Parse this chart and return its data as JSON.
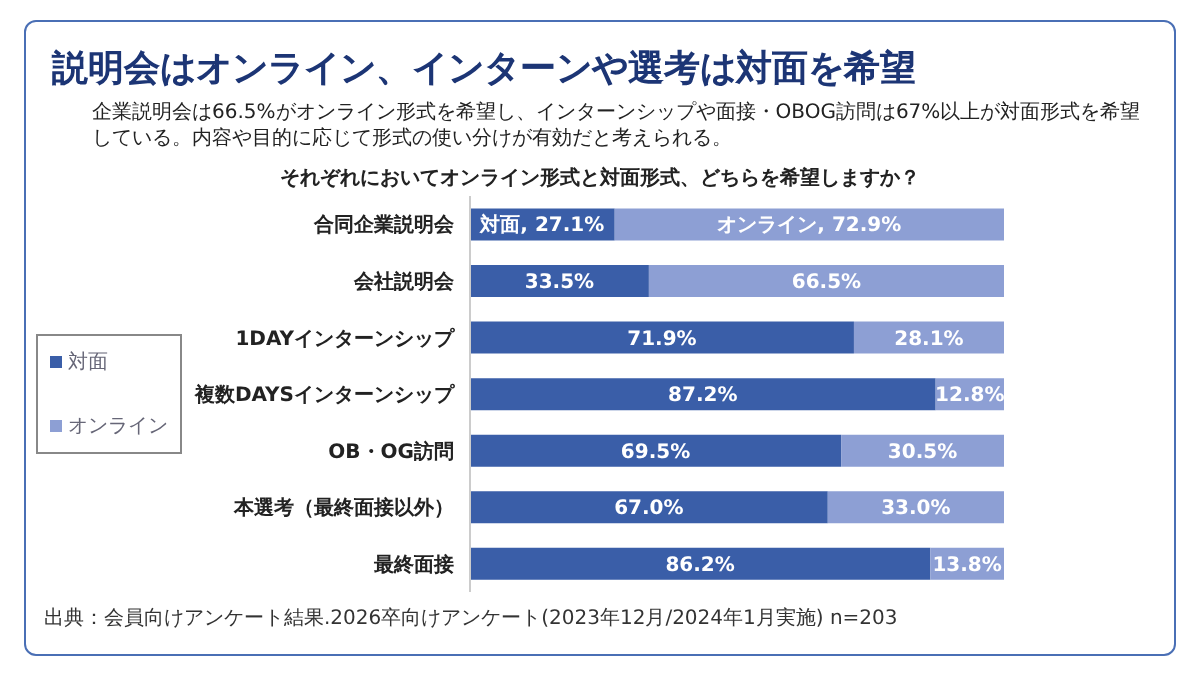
{
  "chart_data": {
    "type": "bar",
    "orientation": "horizontal",
    "stacked": true,
    "title": "説明会はオンライン、インターンや選考は対面を希望",
    "subtitle": "企業説明会は66.5%がオンライン形式を希望し、インターンシップや面接・OBOG訪問は67%以上が対面形式を希望している。内容や目的に応じて形式の使い分けが有効だと考えられる。",
    "annotations": [
      "それぞれにおいてオンライン形式と対面形式、どちらを希望しますか？",
      "出典：会員向けアンケート結果.2026卒向けアンケート(2023年12月/2024年1月実施) n=203"
    ],
    "categories": [
      "合同企業説明会",
      "会社説明会",
      "1DAYインターンシップ",
      "複数DAYSインターンシップ",
      "OB・OG訪問",
      "本選考（最終面接以外）",
      "最終面接"
    ],
    "series": [
      {
        "name": "対面",
        "color": "#3a5ea8",
        "values": [
          27.1,
          33.5,
          71.9,
          87.2,
          69.5,
          67.0,
          86.2
        ],
        "value_labels": [
          "対面, 27.1%",
          "33.5%",
          "71.9%",
          "87.2%",
          "69.5%",
          "67.0%",
          "86.2%"
        ]
      },
      {
        "name": "オンライン",
        "color": "#8d9fd4",
        "values": [
          72.9,
          66.5,
          28.1,
          12.8,
          30.5,
          33.0,
          13.8
        ],
        "value_labels": [
          "オンライン, 72.9%",
          "66.5%",
          "28.1%",
          "12.8%",
          "30.5%",
          "33.0%",
          "13.8%"
        ]
      }
    ],
    "legend": "left"
  }
}
